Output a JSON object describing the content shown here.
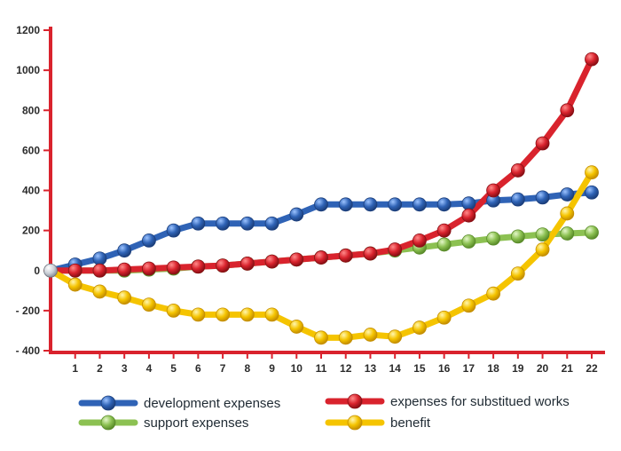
{
  "chart_data": {
    "type": "line",
    "title": "",
    "xlabel": "",
    "ylabel": "",
    "x": [
      0,
      1,
      2,
      3,
      4,
      5,
      6,
      7,
      8,
      9,
      10,
      11,
      12,
      13,
      14,
      15,
      16,
      17,
      18,
      19,
      20,
      21,
      22
    ],
    "x_tick_labels": [
      "1",
      "2",
      "3",
      "4",
      "5",
      "6",
      "7",
      "8",
      "9",
      "10",
      "11",
      "12",
      "13",
      "14",
      "15",
      "16",
      "17",
      "18",
      "19",
      "20",
      "21",
      "22"
    ],
    "y_tick_labels": [
      "1200",
      "1000",
      "800",
      "600",
      "400",
      "200",
      "0",
      "- 200",
      "- 400"
    ],
    "y_ticks": [
      1200,
      1000,
      800,
      600,
      400,
      200,
      0,
      -200,
      -400
    ],
    "xlim": [
      0,
      22
    ],
    "ylim": [
      -400,
      1200
    ],
    "grid": false,
    "legend_position": "bottom",
    "series": [
      {
        "name": "development expenses",
        "color": "#2f63b6",
        "values": [
          0,
          30,
          60,
          100,
          150,
          200,
          235,
          235,
          235,
          235,
          280,
          330,
          330,
          330,
          330,
          330,
          330,
          335,
          350,
          355,
          365,
          380,
          390
        ]
      },
      {
        "name": "expenses for substitued works",
        "color": "#d9232d",
        "values": [
          0,
          0,
          0,
          5,
          10,
          15,
          20,
          25,
          35,
          45,
          55,
          65,
          75,
          85,
          105,
          150,
          200,
          275,
          400,
          500,
          635,
          800,
          1055
        ]
      },
      {
        "name": "support expenses",
        "color": "#8cc152",
        "values": [
          0,
          0,
          0,
          0,
          5,
          10,
          20,
          25,
          35,
          45,
          55,
          65,
          75,
          85,
          100,
          115,
          130,
          145,
          160,
          170,
          180,
          185,
          190
        ]
      },
      {
        "name": "benefit",
        "color": "#f5c400",
        "values": [
          0,
          -70,
          -105,
          -135,
          -170,
          -200,
          -220,
          -220,
          -220,
          -220,
          -280,
          -335,
          -335,
          -320,
          -330,
          -285,
          -235,
          -175,
          -115,
          -15,
          105,
          285,
          490
        ]
      }
    ]
  },
  "legend": {
    "items": [
      {
        "label": "development expenses",
        "color": "#2f63b6"
      },
      {
        "label": "expenses for substitued works",
        "color": "#d9232d"
      },
      {
        "label": "support expenses",
        "color": "#8cc152"
      },
      {
        "label": "benefit",
        "color": "#f5c400"
      }
    ]
  },
  "axis_color": "#d9232d"
}
